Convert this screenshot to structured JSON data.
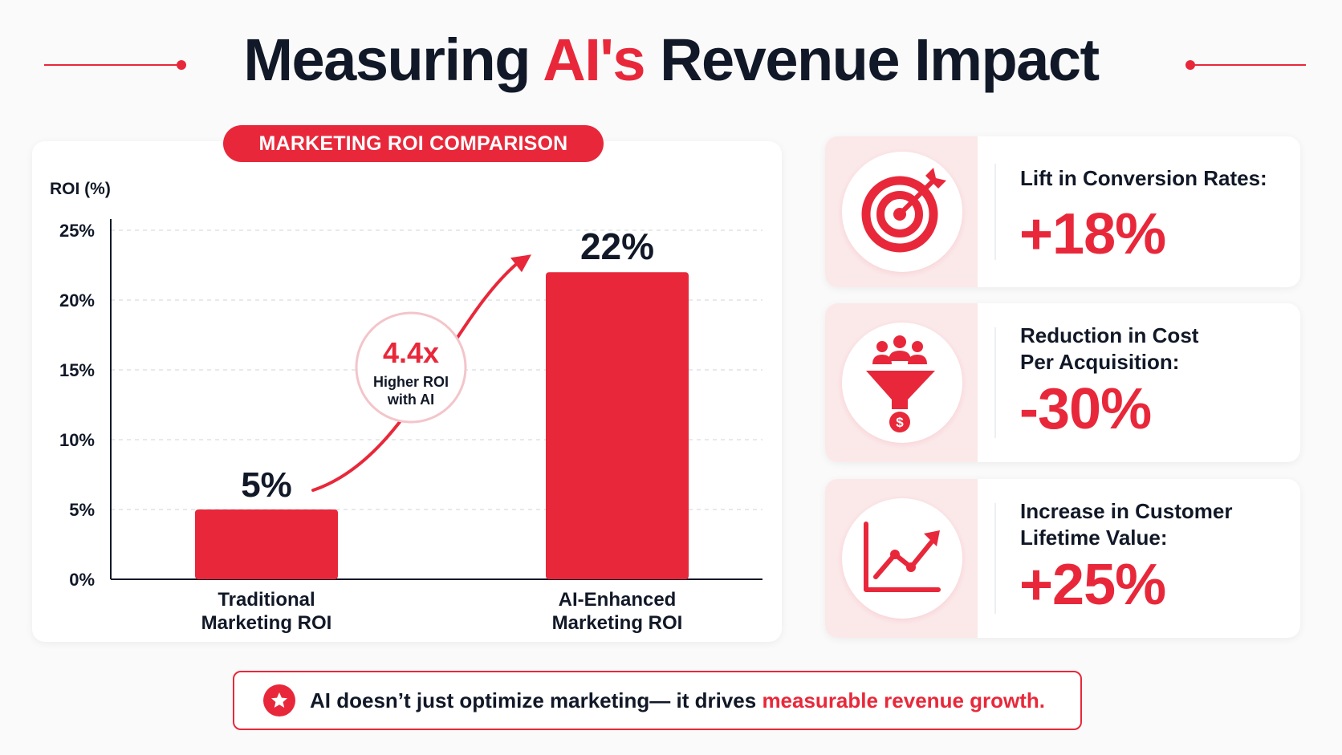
{
  "title": {
    "part1": "Measuring ",
    "highlight": "AI's",
    "part2": " Revenue Impact"
  },
  "chart_data": {
    "type": "bar",
    "title": "MARKETING ROI COMPARISON",
    "ylabel": "ROI (%)",
    "ylim": [
      0,
      25
    ],
    "yticks": [
      "0%",
      "5%",
      "10%",
      "15%",
      "20%",
      "25%"
    ],
    "ytick_values": [
      0,
      5,
      10,
      15,
      20,
      25
    ],
    "grid": true,
    "categories": [
      [
        "Traditional",
        "Marketing ROI"
      ],
      [
        "AI-Enhanced",
        "Marketing ROI"
      ]
    ],
    "values": [
      5,
      22
    ],
    "data_labels": [
      "5%",
      "22%"
    ],
    "annotation": {
      "value": "4.4x",
      "line1": "Higher ROI",
      "line2": "with AI"
    },
    "colors": {
      "bar": "#e8283a",
      "grid": "#d9dce1",
      "axis": "#111827"
    }
  },
  "metrics": [
    {
      "icon": "target-icon",
      "label_lines": [
        "Lift in Conversion Rates:"
      ],
      "value": "+18%"
    },
    {
      "icon": "funnel-icon",
      "label_lines": [
        "Reduction in Cost",
        "Per Acquisition:"
      ],
      "value": "-30%"
    },
    {
      "icon": "trend-up-icon",
      "label_lines": [
        "Increase in Customer",
        "Lifetime Value:"
      ],
      "value": "+25%"
    }
  ],
  "footer": {
    "icon": "star-icon",
    "text": "AI doesn’t just optimize marketing— it drives ",
    "highlight": "measurable revenue growth."
  },
  "colors": {
    "accent": "#e8283a",
    "text": "#111827",
    "panel": "#fbe9ea"
  }
}
